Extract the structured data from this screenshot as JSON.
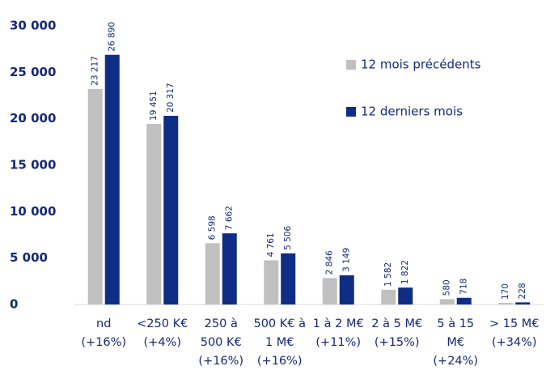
{
  "chart_data": {
    "type": "bar",
    "categories": [
      [
        "nd",
        "(+16%)"
      ],
      [
        "<250 K€",
        "(+4%)"
      ],
      [
        "250 à",
        "500 K€",
        "(+16%)"
      ],
      [
        "500 K€ à",
        "1 M€",
        "(+16%)"
      ],
      [
        "1 à 2 M€",
        "(+11%)"
      ],
      [
        "2 à 5 M€",
        "(+15%)"
      ],
      [
        "5 à 15",
        "M€",
        "(+24%)"
      ],
      [
        "> 15 M€",
        "(+34%)"
      ]
    ],
    "series": [
      {
        "name": "12 mois précédents",
        "color": "#c0c0c0",
        "values": [
          23217,
          19451,
          6598,
          4761,
          2846,
          1582,
          580,
          170
        ],
        "value_labels": [
          "23 217",
          "19 451",
          "6 598",
          "4 761",
          "2 846",
          "1 582",
          "580",
          "170"
        ]
      },
      {
        "name": "12 derniers mois",
        "color": "#0f2d85",
        "values": [
          26890,
          20317,
          7662,
          5506,
          3149,
          1822,
          718,
          228
        ],
        "value_labels": [
          "26 890",
          "20 317",
          "7 662",
          "5 506",
          "3 149",
          "1 822",
          "718",
          "228"
        ]
      }
    ],
    "ylim": [
      0,
      30000
    ],
    "yticks": [
      0,
      {
        "value": 5000,
        "label": "5 000"
      },
      {
        "value": 10000,
        "label": "10 000"
      },
      {
        "value": 15000,
        "label": "15 000"
      },
      {
        "value": 20000,
        "label": "20 000"
      },
      {
        "value": 25000,
        "label": "25 000"
      },
      {
        "value": 30000,
        "label": "30 000"
      }
    ]
  }
}
